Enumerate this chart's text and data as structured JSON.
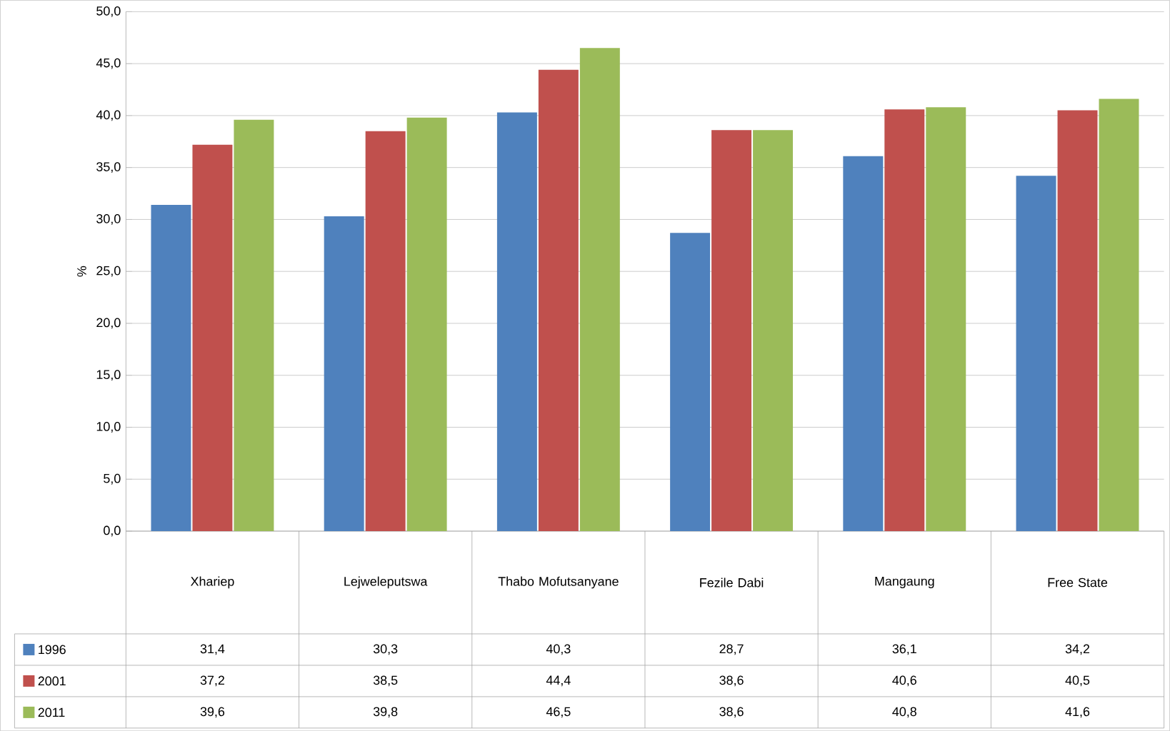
{
  "chart_data": {
    "type": "bar",
    "ylabel": "%",
    "categories": [
      "Xhariep",
      "Lejweleputswa",
      "Thabo Mofutsanyane",
      "Fezile Dabi",
      "Mangaung",
      "Free State"
    ],
    "series": [
      {
        "name": "1996",
        "color": "#4f81bd",
        "values": [
          31.4,
          30.3,
          40.3,
          28.7,
          36.1,
          34.2
        ],
        "value_labels": [
          "31,4",
          "30,3",
          "40,3",
          "28,7",
          "36,1",
          "34,2"
        ]
      },
      {
        "name": "2001",
        "color": "#c0504d",
        "values": [
          37.2,
          38.5,
          44.4,
          38.6,
          40.6,
          40.5
        ],
        "value_labels": [
          "37,2",
          "38,5",
          "44,4",
          "38,6",
          "40,6",
          "40,5"
        ]
      },
      {
        "name": "2011",
        "color": "#9bbb59",
        "values": [
          39.6,
          39.8,
          46.5,
          38.6,
          40.8,
          41.6
        ],
        "value_labels": [
          "39,6",
          "39,8",
          "46,5",
          "38,6",
          "40,8",
          "41,6"
        ]
      }
    ],
    "ylim": [
      0,
      50
    ],
    "yticks": [
      {
        "value": 0,
        "label": "0,0"
      },
      {
        "value": 5,
        "label": "5,0"
      },
      {
        "value": 10,
        "label": "10,0"
      },
      {
        "value": 15,
        "label": "15,0"
      },
      {
        "value": 20,
        "label": "20,0"
      },
      {
        "value": 25,
        "label": "25,0"
      },
      {
        "value": 30,
        "label": "30,0"
      },
      {
        "value": 35,
        "label": "35,0"
      },
      {
        "value": 40,
        "label": "40,0"
      },
      {
        "value": 45,
        "label": "45,0"
      },
      {
        "value": 50,
        "label": "50,0"
      }
    ],
    "grid": "y",
    "legend": "bottom"
  }
}
